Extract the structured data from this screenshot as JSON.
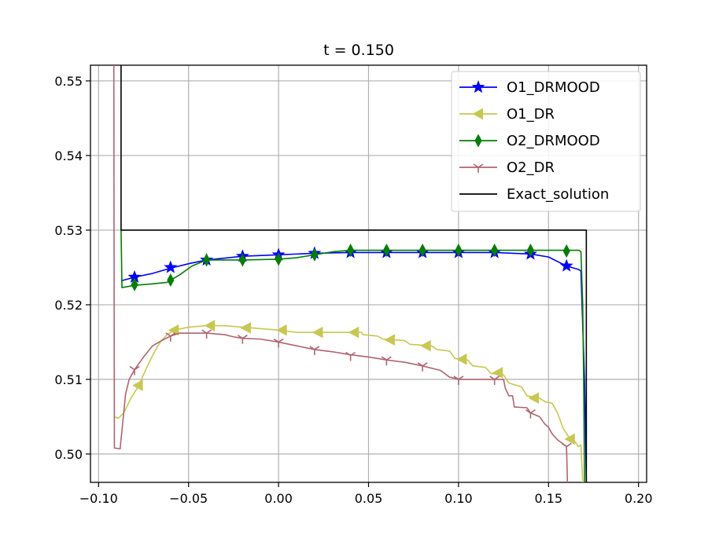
{
  "chart_data": {
    "type": "line",
    "title": "t = 0.150",
    "xlabel": "",
    "ylabel": "",
    "xlim": [
      -0.1045,
      0.2045
    ],
    "ylim": [
      0.4962,
      0.5521
    ],
    "xticks": [
      -0.1,
      -0.05,
      0.0,
      0.05,
      0.1,
      0.15,
      0.2
    ],
    "xtick_labels": [
      "−0.10",
      "−0.05",
      "0.00",
      "0.05",
      "0.10",
      "0.15",
      "0.20"
    ],
    "yticks": [
      0.5,
      0.51,
      0.52,
      0.53,
      0.54,
      0.55
    ],
    "ytick_labels": [
      "0.50",
      "0.51",
      "0.52",
      "0.53",
      "0.54",
      "0.55"
    ],
    "grid": true,
    "legend_position": "upper right",
    "series": [
      {
        "name": "O1_DRMOOD",
        "color": "#0000ff",
        "marker": "star",
        "line": [
          [
            -0.0875,
            0.5232
          ],
          [
            -0.08,
            0.5237
          ],
          [
            -0.07,
            0.5242
          ],
          [
            -0.06,
            0.5249
          ],
          [
            -0.05,
            0.5255
          ],
          [
            -0.04,
            0.526
          ],
          [
            -0.02,
            0.5265
          ],
          [
            0.0,
            0.5267
          ],
          [
            0.02,
            0.5269
          ],
          [
            0.04,
            0.527
          ],
          [
            0.06,
            0.527
          ],
          [
            0.1,
            0.527
          ],
          [
            0.12,
            0.527
          ],
          [
            0.14,
            0.5268
          ],
          [
            0.15,
            0.5264
          ],
          [
            0.16,
            0.5252
          ],
          [
            0.167,
            0.5247
          ],
          [
            0.168,
            0.5245
          ],
          [
            0.17,
            0.51
          ],
          [
            0.171,
            0.4962
          ]
        ],
        "markers": [
          [
            -0.08,
            0.5237
          ],
          [
            -0.06,
            0.525
          ],
          [
            -0.04,
            0.526
          ],
          [
            -0.02,
            0.5265
          ],
          [
            0.0,
            0.5267
          ],
          [
            0.02,
            0.5269
          ],
          [
            0.04,
            0.527
          ],
          [
            0.06,
            0.527
          ],
          [
            0.08,
            0.527
          ],
          [
            0.1,
            0.527
          ],
          [
            0.12,
            0.527
          ],
          [
            0.14,
            0.5268
          ],
          [
            0.16,
            0.5252
          ]
        ]
      },
      {
        "name": "O1_DR",
        "color": "#c8c850",
        "marker": "triangle-left",
        "line": [
          [
            -0.0915,
            0.505
          ],
          [
            -0.089,
            0.5048
          ],
          [
            -0.086,
            0.5055
          ],
          [
            -0.082,
            0.5075
          ],
          [
            -0.078,
            0.509
          ],
          [
            -0.074,
            0.5112
          ],
          [
            -0.07,
            0.5132
          ],
          [
            -0.066,
            0.5149
          ],
          [
            -0.062,
            0.516
          ],
          [
            -0.058,
            0.5166
          ],
          [
            -0.05,
            0.517
          ],
          [
            -0.04,
            0.5172
          ],
          [
            -0.03,
            0.5172
          ],
          [
            -0.02,
            0.517
          ],
          [
            -0.01,
            0.5168
          ],
          [
            0.0,
            0.5166
          ],
          [
            0.01,
            0.5163
          ],
          [
            0.02,
            0.5163
          ],
          [
            0.03,
            0.5163
          ],
          [
            0.04,
            0.5163
          ],
          [
            0.046,
            0.5163
          ],
          [
            0.047,
            0.516
          ],
          [
            0.055,
            0.5158
          ],
          [
            0.058,
            0.5154
          ],
          [
            0.07,
            0.5152
          ],
          [
            0.073,
            0.5147
          ],
          [
            0.085,
            0.5145
          ],
          [
            0.088,
            0.514
          ],
          [
            0.095,
            0.5138
          ],
          [
            0.098,
            0.5128
          ],
          [
            0.105,
            0.5126
          ],
          [
            0.108,
            0.5118
          ],
          [
            0.115,
            0.5116
          ],
          [
            0.118,
            0.5108
          ],
          [
            0.125,
            0.5106
          ],
          [
            0.128,
            0.5095
          ],
          [
            0.135,
            0.509
          ],
          [
            0.138,
            0.5078
          ],
          [
            0.145,
            0.5075
          ],
          [
            0.148,
            0.507
          ],
          [
            0.152,
            0.5068
          ],
          [
            0.155,
            0.5055
          ],
          [
            0.158,
            0.5035
          ],
          [
            0.162,
            0.502
          ],
          [
            0.164,
            0.5019
          ],
          [
            0.1665,
            0.501
          ],
          [
            0.168,
            0.5012
          ],
          [
            0.169,
            0.4962
          ]
        ],
        "markers": [
          [
            -0.078,
            0.5092
          ],
          [
            -0.058,
            0.5166
          ],
          [
            -0.038,
            0.5172
          ],
          [
            -0.018,
            0.5169
          ],
          [
            0.002,
            0.5166
          ],
          [
            0.022,
            0.5163
          ],
          [
            0.042,
            0.5163
          ],
          [
            0.062,
            0.5153
          ],
          [
            0.082,
            0.5145
          ],
          [
            0.102,
            0.5127
          ],
          [
            0.122,
            0.5109
          ],
          [
            0.142,
            0.5075
          ],
          [
            0.162,
            0.502
          ]
        ]
      },
      {
        "name": "O2_DRMOOD",
        "color": "#008000",
        "marker": "thin-diamond",
        "line": [
          [
            -0.0875,
            0.53
          ],
          [
            -0.087,
            0.5223
          ],
          [
            -0.08,
            0.5226
          ],
          [
            -0.07,
            0.5228
          ],
          [
            -0.062,
            0.523
          ],
          [
            -0.055,
            0.524
          ],
          [
            -0.048,
            0.5252
          ],
          [
            -0.04,
            0.526
          ],
          [
            -0.02,
            0.526
          ],
          [
            0.0,
            0.5261
          ],
          [
            0.01,
            0.5263
          ],
          [
            0.02,
            0.5267
          ],
          [
            0.03,
            0.5271
          ],
          [
            0.04,
            0.5273
          ],
          [
            0.06,
            0.5273
          ],
          [
            0.1,
            0.5273
          ],
          [
            0.14,
            0.5273
          ],
          [
            0.16,
            0.5273
          ],
          [
            0.167,
            0.5273
          ],
          [
            0.168,
            0.5271
          ],
          [
            0.169,
            0.52
          ],
          [
            0.1695,
            0.51
          ],
          [
            0.17,
            0.4962
          ]
        ],
        "markers": [
          [
            -0.08,
            0.5227
          ],
          [
            -0.06,
            0.5233
          ],
          [
            -0.04,
            0.526
          ],
          [
            -0.02,
            0.526
          ],
          [
            0.0,
            0.5261
          ],
          [
            0.02,
            0.5267
          ],
          [
            0.04,
            0.5273
          ],
          [
            0.06,
            0.5273
          ],
          [
            0.08,
            0.5273
          ],
          [
            0.1,
            0.5273
          ],
          [
            0.12,
            0.5273
          ],
          [
            0.14,
            0.5273
          ],
          [
            0.16,
            0.5272
          ]
        ]
      },
      {
        "name": "O2_DR",
        "color": "#b06470",
        "marker": "tri-down",
        "line": [
          [
            -0.0915,
            0.5521
          ],
          [
            -0.0914,
            0.53
          ],
          [
            -0.0913,
            0.515
          ],
          [
            -0.0912,
            0.5008
          ],
          [
            -0.088,
            0.5007
          ],
          [
            -0.0875,
            0.502
          ],
          [
            -0.085,
            0.508
          ],
          [
            -0.083,
            0.51
          ],
          [
            -0.08,
            0.5113
          ],
          [
            -0.075,
            0.513
          ],
          [
            -0.07,
            0.5145
          ],
          [
            -0.065,
            0.5152
          ],
          [
            -0.06,
            0.5158
          ],
          [
            -0.055,
            0.5162
          ],
          [
            -0.05,
            0.5162
          ],
          [
            -0.04,
            0.5162
          ],
          [
            -0.03,
            0.516
          ],
          [
            -0.025,
            0.5157
          ],
          [
            -0.02,
            0.5155
          ],
          [
            -0.01,
            0.5154
          ],
          [
            0.0,
            0.515
          ],
          [
            0.01,
            0.5145
          ],
          [
            0.02,
            0.514
          ],
          [
            0.03,
            0.5137
          ],
          [
            0.04,
            0.5133
          ],
          [
            0.05,
            0.513
          ],
          [
            0.06,
            0.5126
          ],
          [
            0.07,
            0.5123
          ],
          [
            0.08,
            0.5118
          ],
          [
            0.09,
            0.5112
          ],
          [
            0.095,
            0.5103
          ],
          [
            0.1,
            0.51
          ],
          [
            0.11,
            0.51
          ],
          [
            0.12,
            0.51
          ],
          [
            0.125,
            0.51
          ],
          [
            0.126,
            0.5088
          ],
          [
            0.128,
            0.5078
          ],
          [
            0.13,
            0.5078
          ],
          [
            0.131,
            0.5063
          ],
          [
            0.138,
            0.5062
          ],
          [
            0.14,
            0.5055
          ],
          [
            0.145,
            0.505
          ],
          [
            0.148,
            0.504
          ],
          [
            0.15,
            0.5036
          ],
          [
            0.152,
            0.5027
          ],
          [
            0.155,
            0.5019
          ],
          [
            0.16,
            0.501
          ],
          [
            0.1605,
            0.4962
          ]
        ],
        "markers": [
          [
            -0.08,
            0.5113
          ],
          [
            -0.06,
            0.5158
          ],
          [
            -0.04,
            0.5162
          ],
          [
            -0.02,
            0.5155
          ],
          [
            0.0,
            0.515
          ],
          [
            0.02,
            0.514
          ],
          [
            0.04,
            0.5132
          ],
          [
            0.06,
            0.5126
          ],
          [
            0.08,
            0.5118
          ],
          [
            0.1,
            0.51
          ],
          [
            0.12,
            0.51
          ],
          [
            0.14,
            0.5055
          ],
          [
            0.16,
            0.501
          ]
        ]
      },
      {
        "name": "Exact_solution",
        "color": "#000000",
        "marker": "none",
        "line": [
          [
            -0.0875,
            0.5521
          ],
          [
            -0.0875,
            0.53
          ],
          [
            0.171,
            0.53
          ],
          [
            0.171,
            0.4962
          ]
        ],
        "markers": []
      }
    ]
  }
}
